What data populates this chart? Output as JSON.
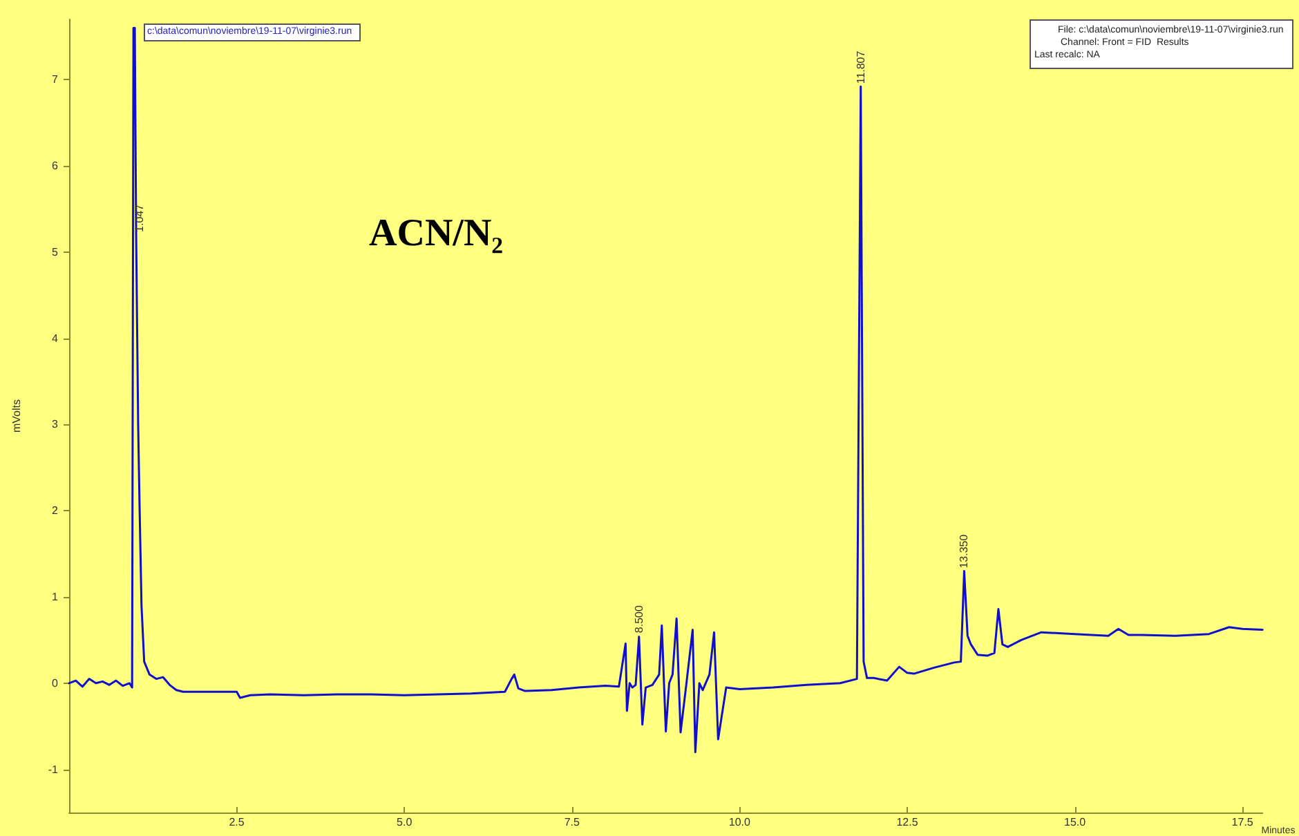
{
  "chart_data": {
    "type": "line",
    "title": "ACN/N₂",
    "xlabel": "Minutes",
    "ylabel": "mVolts",
    "annotations": [
      {
        "text": "1.047",
        "x": 1.047,
        "y": 5.2
      },
      {
        "text": "8.500",
        "x": 8.5,
        "y": 0.55
      },
      {
        "text": "11.807",
        "x": 11.807,
        "y": 6.92
      },
      {
        "text": "13.350",
        "x": 13.35,
        "y": 1.3
      },
      "c:\\data\\comun\\noviembre\\19-11-07\\virginie3.run",
      "File: c:\\data\\comun\\noviembre\\19-11-07\\virginie3.run",
      "Channel: Front = FID  Results",
      "Last recalc: NA"
    ],
    "xlim": [
      0,
      17.8
    ],
    "ylim": [
      -1.5,
      7.7
    ],
    "xticks": [
      {
        "value": 0,
        "label": null
      },
      {
        "value": 2.5,
        "label": "2.5"
      },
      {
        "value": 5,
        "label": "5.0"
      },
      {
        "value": 7.5,
        "label": "7.5"
      },
      {
        "value": 10,
        "label": "10.0"
      },
      {
        "value": 12.5,
        "label": "12.5"
      },
      {
        "value": 15,
        "label": "15.0"
      },
      {
        "value": 17.5,
        "label": "17.5"
      }
    ],
    "yticks": [
      -1,
      0,
      1,
      2,
      3,
      4,
      5,
      6,
      7
    ],
    "grid": false,
    "marker": "none",
    "line_style": "solid",
    "series": [
      {
        "color": "#1010cc",
        "x": [
          0,
          0.1,
          0.2,
          0.3,
          0.4,
          0.5,
          0.6,
          0.7,
          0.8,
          0.9,
          0.94,
          0.96,
          0.98,
          1.0,
          1.03,
          1.05,
          1.08,
          1.12,
          1.2,
          1.3,
          1.4,
          1.5,
          1.6,
          1.7,
          2.0,
          2.3,
          2.5,
          2.55,
          2.7,
          3.0,
          3.5,
          4.0,
          4.5,
          5.0,
          5.5,
          6.0,
          6.5,
          6.6,
          6.64,
          6.7,
          6.8,
          7.2,
          7.6,
          8.0,
          8.2,
          8.3,
          8.32,
          8.36,
          8.4,
          8.45,
          8.5,
          8.55,
          8.6,
          8.7,
          8.8,
          8.84,
          8.9,
          8.95,
          9.0,
          9.06,
          9.12,
          9.2,
          9.3,
          9.34,
          9.4,
          9.45,
          9.55,
          9.62,
          9.68,
          9.8,
          10.0,
          10.5,
          11.0,
          11.5,
          11.75,
          11.807,
          11.85,
          11.9,
          12.0,
          12.2,
          12.38,
          12.5,
          12.6,
          12.9,
          13.2,
          13.3,
          13.35,
          13.4,
          13.45,
          13.55,
          13.7,
          13.8,
          13.86,
          13.92,
          14.0,
          14.2,
          14.5,
          15.0,
          15.5,
          15.65,
          15.8,
          16.0,
          16.5,
          17.0,
          17.3,
          17.5,
          17.8
        ],
        "values": [
          0,
          0.03,
          -0.04,
          0.05,
          0,
          0.02,
          -0.02,
          0.03,
          -0.03,
          0,
          -0.05,
          7.6,
          7.6,
          5.2,
          3.0,
          2.1,
          0.9,
          0.25,
          0.1,
          0.05,
          0.07,
          -0.02,
          -0.08,
          -0.1,
          -0.1,
          -0.1,
          -0.1,
          -0.17,
          -0.14,
          -0.13,
          -0.14,
          -0.13,
          -0.13,
          -0.14,
          -0.13,
          -0.12,
          -0.1,
          0.05,
          0.1,
          -0.06,
          -0.09,
          -0.08,
          -0.05,
          -0.03,
          -0.04,
          0.46,
          -0.32,
          0.0,
          -0.05,
          -0.02,
          0.54,
          -0.48,
          -0.05,
          -0.02,
          0.1,
          0.67,
          -0.56,
          0.0,
          0.1,
          0.75,
          -0.57,
          -0.05,
          0.62,
          -0.8,
          0.0,
          -0.08,
          0.1,
          0.59,
          -0.65,
          -0.05,
          -0.07,
          -0.05,
          -0.02,
          0.0,
          0.05,
          6.92,
          0.25,
          0.06,
          0.06,
          0.03,
          0.19,
          0.12,
          0.11,
          0.18,
          0.24,
          0.25,
          1.3,
          0.55,
          0.45,
          0.33,
          0.32,
          0.35,
          0.86,
          0.45,
          0.42,
          0.5,
          0.59,
          0.57,
          0.55,
          0.63,
          0.56,
          0.56,
          0.55,
          0.57,
          0.65,
          0.63,
          0.62
        ]
      }
    ]
  }
}
